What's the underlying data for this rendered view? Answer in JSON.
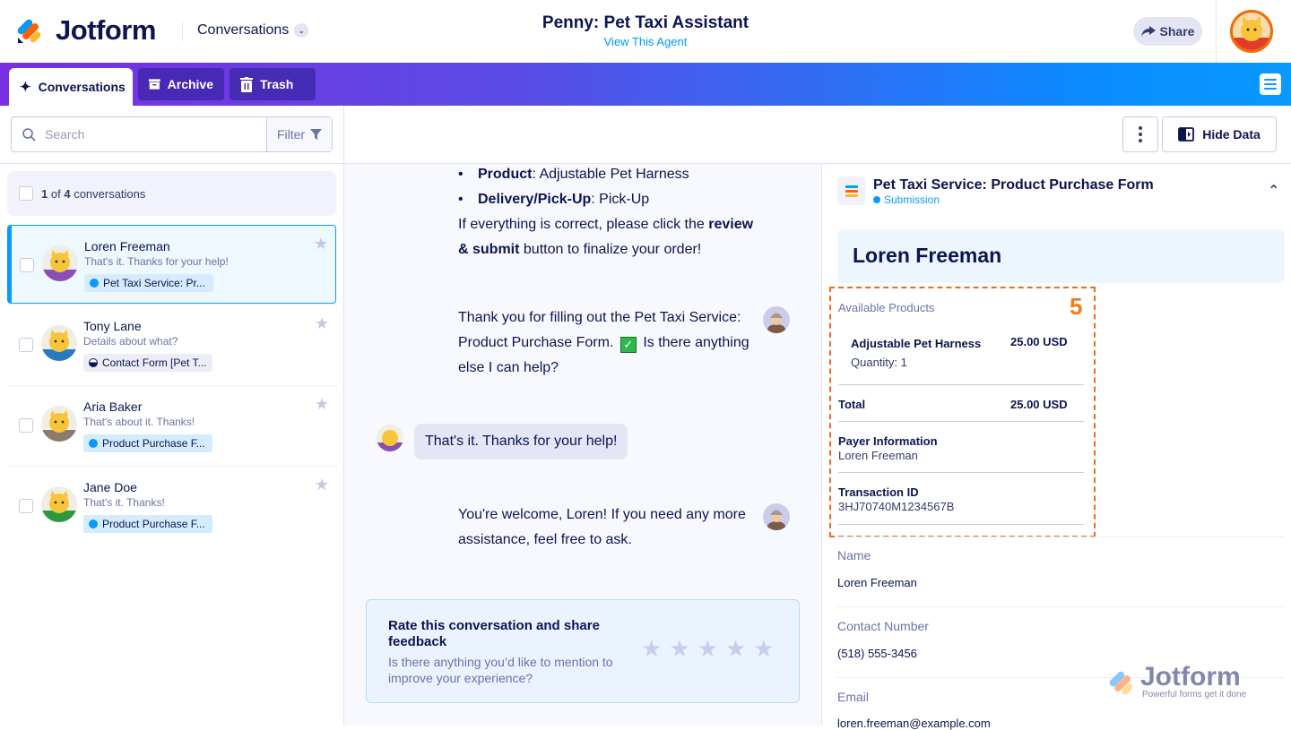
{
  "header": {
    "logo_text": "Jotform",
    "section_dropdown": "Conversations",
    "agent_title": "Penny: Pet Taxi Assistant",
    "agent_link": "View This Agent",
    "share_label": "Share"
  },
  "tabs": [
    {
      "label": "Conversations",
      "icon": "sparkles-icon",
      "active": true
    },
    {
      "label": "Archive",
      "icon": "archive-icon",
      "active": false
    },
    {
      "label": "Trash",
      "icon": "trash-icon",
      "active": false
    }
  ],
  "sidebar": {
    "search_placeholder": "Search",
    "filter_label": "Filter",
    "count_current": "1",
    "count_of": "of",
    "count_total": "4",
    "count_suffix": "conversations",
    "items": [
      {
        "name": "Loren Freeman",
        "message": "That's it. Thanks for your help!",
        "tag": "Pet Taxi Service: Pr...",
        "tag_type": "submission",
        "selected": true,
        "shirt": "#8a4fb5"
      },
      {
        "name": "Tony Lane",
        "message": "Details about what?",
        "tag": "Contact Form [Pet T...",
        "tag_type": "partial",
        "selected": false,
        "shirt": "#2a7ac0"
      },
      {
        "name": "Aria Baker",
        "message": "That's about it. Thanks!",
        "tag": "Product Purchase F...",
        "tag_type": "submission",
        "selected": false,
        "shirt": "#8c7a6a"
      },
      {
        "name": "Jane Doe",
        "message": "That's it. Thanks!",
        "tag": "Product Purchase F...",
        "tag_type": "submission",
        "selected": false,
        "shirt": "#2c9a3c"
      }
    ]
  },
  "toolbar": {
    "hide_data_label": "Hide Data"
  },
  "chat": {
    "bullets": [
      {
        "key": "Product",
        "value": ": Adjustable Pet Harness"
      },
      {
        "key": "Delivery/Pick-Up",
        "value": ": Pick-Up"
      }
    ],
    "confirm": {
      "pre": "If everything is correct, please click the ",
      "bold": "review & submit",
      "post": " button to finalize your order!"
    },
    "thanks_pre": "Thank you for filling out the Pet Taxi Service: Product Purchase Form.",
    "thanks_post": "Is there anything else I can help?",
    "user_message": "That's it. Thanks for your help!",
    "welcome": "You're welcome, Loren! If you need any more assistance, feel free to ask.",
    "rating": {
      "title": "Rate this conversation and share feedback",
      "subtitle": "Is there anything you’d like to mention to improve your experience?",
      "stars_filled": 0,
      "stars_total": 5
    }
  },
  "submission": {
    "form_title": "Pet Taxi Service: Product Purchase Form",
    "status": "Submission",
    "submitter": "Loren Freeman",
    "annotation_number": "5",
    "products_label": "Available Products",
    "product_name": "Adjustable Pet Harness",
    "product_price": "25.00 USD",
    "product_quantity": "Quantity: 1",
    "total_label": "Total",
    "total_value": "25.00 USD",
    "payer_label": "Payer Information",
    "payer_value": "Loren Freeman",
    "txn_label": "Transaction ID",
    "txn_value": "3HJ70740M1234567B",
    "fields": [
      {
        "label": "Name",
        "value": "Loren Freeman"
      },
      {
        "label": "Contact Number",
        "value": "(518) 555-3456"
      },
      {
        "label": "Email",
        "value": "loren.freeman@example.com"
      }
    ]
  },
  "watermark": {
    "brand": "Jotform",
    "tagline": "Powerful forms get it done"
  },
  "colors": {
    "accent": "#0a99ff",
    "navy": "#0a1551",
    "annotation": "#f06a1c",
    "tab_gradient_start": "#7a2fe0",
    "tab_gradient_end": "#0a99ff"
  }
}
